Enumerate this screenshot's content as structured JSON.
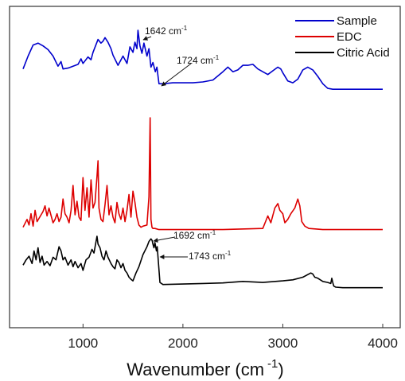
{
  "chart_data": {
    "type": "line",
    "title": "",
    "xlabel": "Wavenumber (cm",
    "xlabel_sup": "-1",
    "xlabel_close": ")",
    "ylabel": "",
    "xlim": [
      400,
      4000
    ],
    "y_ticks_shown": false,
    "xticks": [
      {
        "value": 1000,
        "label": "1000"
      },
      {
        "value": 2000,
        "label": "2000"
      },
      {
        "value": 3000,
        "label": "3000"
      },
      {
        "value": 4000,
        "label": "4000"
      }
    ],
    "legend_position": "top-right",
    "series": [
      {
        "name": "Sample",
        "color": "#0000cc",
        "x": [
          400,
          450,
          500,
          550,
          600,
          650,
          700,
          750,
          780,
          800,
          850,
          900,
          950,
          980,
          1000,
          1050,
          1080,
          1100,
          1150,
          1180,
          1200,
          1220,
          1250,
          1280,
          1300,
          1350,
          1400,
          1440,
          1470,
          1500,
          1520,
          1540,
          1550,
          1570,
          1590,
          1610,
          1640,
          1660,
          1680,
          1700,
          1724,
          1740,
          1760,
          1800,
          1900,
          2000,
          2100,
          2200,
          2300,
          2400,
          2450,
          2500,
          2550,
          2600,
          2650,
          2700,
          2750,
          2800,
          2850,
          2900,
          2950,
          2980,
          3000,
          3050,
          3100,
          3150,
          3200,
          3250,
          3300,
          3350,
          3400,
          3450,
          3500,
          3600,
          3800,
          4000
        ],
        "y": [
          0.58,
          0.72,
          0.84,
          0.86,
          0.83,
          0.79,
          0.72,
          0.61,
          0.66,
          0.58,
          0.59,
          0.61,
          0.63,
          0.69,
          0.64,
          0.71,
          0.68,
          0.76,
          0.9,
          0.86,
          0.88,
          0.92,
          0.87,
          0.8,
          0.73,
          0.62,
          0.72,
          0.64,
          0.82,
          0.76,
          0.87,
          0.8,
          1.0,
          0.83,
          0.75,
          0.86,
          0.72,
          0.8,
          0.6,
          0.65,
          0.55,
          0.6,
          0.42,
          0.42,
          0.43,
          0.43,
          0.43,
          0.44,
          0.46,
          0.55,
          0.6,
          0.55,
          0.57,
          0.62,
          0.62,
          0.63,
          0.58,
          0.55,
          0.52,
          0.56,
          0.6,
          0.58,
          0.54,
          0.45,
          0.43,
          0.47,
          0.57,
          0.6,
          0.57,
          0.5,
          0.42,
          0.37,
          0.36,
          0.36,
          0.36,
          0.36
        ]
      },
      {
        "name": "EDC",
        "color": "#dd0000",
        "x": [
          400,
          440,
          460,
          480,
          500,
          520,
          540,
          560,
          600,
          620,
          640,
          660,
          700,
          720,
          740,
          760,
          780,
          800,
          820,
          840,
          860,
          880,
          900,
          920,
          940,
          960,
          980,
          1000,
          1020,
          1040,
          1060,
          1080,
          1100,
          1120,
          1140,
          1150,
          1160,
          1180,
          1200,
          1220,
          1240,
          1260,
          1280,
          1300,
          1320,
          1340,
          1360,
          1380,
          1400,
          1420,
          1440,
          1460,
          1480,
          1500,
          1520,
          1540,
          1560,
          1580,
          1600,
          1640,
          1660,
          1672,
          1680,
          1690,
          1700,
          1720,
          1760,
          1800,
          2000,
          2400,
          2800,
          2850,
          2880,
          2920,
          2950,
          2970,
          3000,
          3020,
          3050,
          3080,
          3120,
          3150,
          3170,
          3190,
          3220,
          3260,
          3400,
          3600,
          4000
        ],
        "y": [
          0.03,
          0.1,
          0.05,
          0.15,
          0.04,
          0.18,
          0.08,
          0.11,
          0.17,
          0.22,
          0.13,
          0.2,
          0.07,
          0.1,
          0.15,
          0.08,
          0.12,
          0.28,
          0.15,
          0.12,
          0.07,
          0.18,
          0.4,
          0.14,
          0.26,
          0.12,
          0.09,
          0.47,
          0.18,
          0.38,
          0.12,
          0.45,
          0.2,
          0.25,
          0.48,
          0.62,
          0.2,
          0.1,
          0.08,
          0.23,
          0.4,
          0.14,
          0.22,
          0.12,
          0.07,
          0.25,
          0.15,
          0.1,
          0.2,
          0.08,
          0.18,
          0.32,
          0.12,
          0.35,
          0.25,
          0.12,
          0.05,
          0.03,
          0.04,
          0.05,
          0.3,
          1.0,
          0.1,
          0.03,
          0.02,
          0.02,
          0.01,
          0.01,
          0.01,
          0.01,
          0.02,
          0.13,
          0.07,
          0.2,
          0.24,
          0.18,
          0.15,
          0.07,
          0.1,
          0.15,
          0.2,
          0.28,
          0.22,
          0.08,
          0.04,
          0.02,
          0.01,
          0.01,
          0.01
        ]
      },
      {
        "name": "Citric Acid",
        "color": "#000000",
        "x": [
          400,
          430,
          460,
          490,
          510,
          530,
          550,
          570,
          590,
          610,
          640,
          670,
          700,
          730,
          760,
          780,
          800,
          820,
          850,
          880,
          900,
          920,
          950,
          980,
          1000,
          1030,
          1060,
          1090,
          1110,
          1130,
          1140,
          1150,
          1170,
          1190,
          1210,
          1230,
          1250,
          1280,
          1300,
          1320,
          1340,
          1360,
          1380,
          1400,
          1420,
          1440,
          1460,
          1480,
          1500,
          1530,
          1560,
          1600,
          1640,
          1660,
          1680,
          1692,
          1700,
          1710,
          1720,
          1735,
          1743,
          1755,
          1770,
          1800,
          2000,
          2200,
          2400,
          2600,
          2800,
          3000,
          3100,
          3200,
          3280,
          3300,
          3320,
          3350,
          3400,
          3450,
          3480,
          3490,
          3500,
          3510,
          3530,
          3600,
          3800,
          4000
        ],
        "y": [
          0.45,
          0.55,
          0.62,
          0.48,
          0.72,
          0.55,
          0.78,
          0.5,
          0.62,
          0.45,
          0.52,
          0.44,
          0.6,
          0.55,
          0.8,
          0.72,
          0.55,
          0.6,
          0.45,
          0.55,
          0.42,
          0.52,
          0.4,
          0.48,
          0.35,
          0.55,
          0.6,
          0.75,
          0.68,
          0.9,
          1.0,
          0.85,
          0.78,
          0.62,
          0.55,
          0.72,
          0.6,
          0.48,
          0.42,
          0.38,
          0.55,
          0.5,
          0.4,
          0.48,
          0.35,
          0.3,
          0.22,
          0.18,
          0.15,
          0.3,
          0.42,
          0.65,
          0.8,
          0.9,
          0.95,
          0.92,
          0.85,
          0.78,
          0.88,
          0.72,
          0.8,
          0.5,
          0.12,
          0.08,
          0.09,
          0.1,
          0.11,
          0.14,
          0.12,
          0.15,
          0.17,
          0.22,
          0.3,
          0.28,
          0.22,
          0.2,
          0.14,
          0.12,
          0.1,
          0.2,
          0.12,
          0.05,
          0.03,
          0.02,
          0.02,
          0.02
        ]
      }
    ],
    "annotations": [
      {
        "text": "1642 cm",
        "sup": "-1",
        "series": "Sample"
      },
      {
        "text": "1724 cm",
        "sup": "-1",
        "series": "Sample"
      },
      {
        "text": "1692 cm",
        "sup": "-1",
        "series": "Citric Acid"
      },
      {
        "text": "1743 cm",
        "sup": "-1",
        "series": "Citric Acid"
      }
    ]
  }
}
